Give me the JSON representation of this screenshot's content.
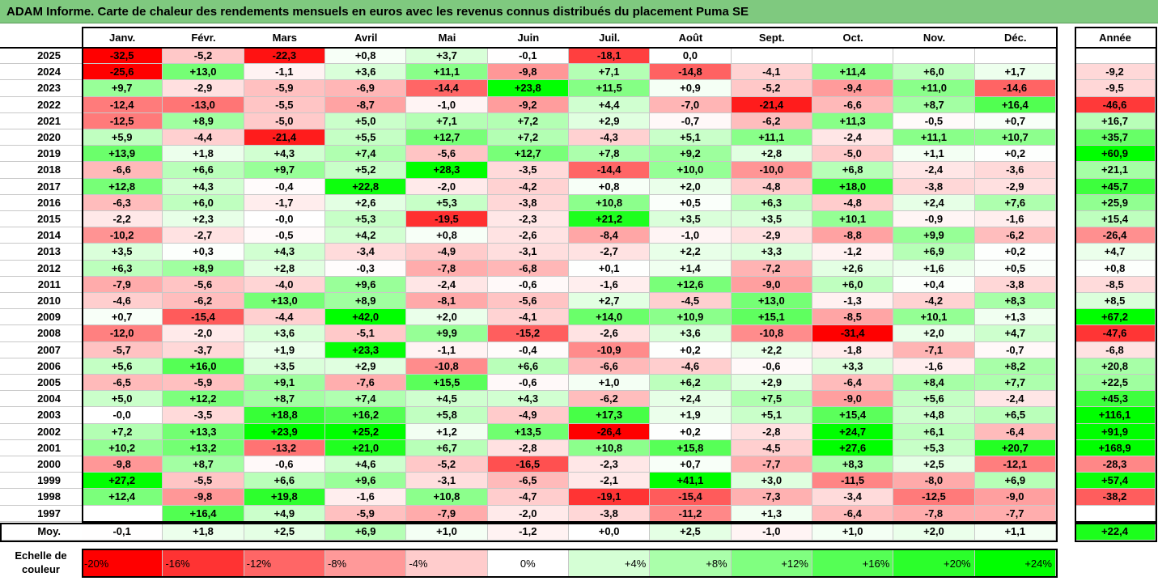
{
  "title": "ADAM Informe. Carte de chaleur des rendements mensuels en euros avec les revenus connus distribués du placement Puma SE",
  "chart_data": {
    "type": "heatmap",
    "columns": [
      "Janv.",
      "Févr.",
      "Mars",
      "Avril",
      "Mai",
      "Juin",
      "Juil.",
      "Août",
      "Sept.",
      "Oct.",
      "Nov.",
      "Déc."
    ],
    "year_column": "Année",
    "rows": [
      {
        "year": "2025",
        "values": [
          "-32,5",
          "-5,2",
          "-22,3",
          "+0,8",
          "+3,7",
          "-0,1",
          "-18,1",
          "0,0",
          "",
          "",
          "",
          ""
        ],
        "annual": ""
      },
      {
        "year": "2024",
        "values": [
          "-25,6",
          "+13,0",
          "-1,1",
          "+3,6",
          "+11,1",
          "-9,8",
          "+7,1",
          "-14,8",
          "-4,1",
          "+11,4",
          "+6,0",
          "+1,7"
        ],
        "annual": "-9,2"
      },
      {
        "year": "2023",
        "values": [
          "+9,7",
          "-2,9",
          "-5,9",
          "-6,9",
          "-14,4",
          "+23,8",
          "+11,5",
          "+0,9",
          "-5,2",
          "-9,4",
          "+11,0",
          "-14,6"
        ],
        "annual": "-9,5"
      },
      {
        "year": "2022",
        "values": [
          "-12,4",
          "-13,0",
          "-5,5",
          "-8,7",
          "-1,0",
          "-9,2",
          "+4,4",
          "-7,0",
          "-21,4",
          "-6,6",
          "+8,7",
          "+16,4"
        ],
        "annual": "-46,6"
      },
      {
        "year": "2021",
        "values": [
          "-12,5",
          "+8,9",
          "-5,0",
          "+5,0",
          "+7,1",
          "+7,2",
          "+2,9",
          "-0,7",
          "-6,2",
          "+11,3",
          "-0,5",
          "+0,7"
        ],
        "annual": "+16,7"
      },
      {
        "year": "2020",
        "values": [
          "+5,9",
          "-4,4",
          "-21,4",
          "+5,5",
          "+12,7",
          "+7,2",
          "-4,3",
          "+5,1",
          "+11,1",
          "-2,4",
          "+11,1",
          "+10,7"
        ],
        "annual": "+35,7"
      },
      {
        "year": "2019",
        "values": [
          "+13,9",
          "+1,8",
          "+4,3",
          "+7,4",
          "-5,6",
          "+12,7",
          "+7,8",
          "+9,2",
          "+2,8",
          "-5,0",
          "+1,1",
          "+0,2"
        ],
        "annual": "+60,9"
      },
      {
        "year": "2018",
        "values": [
          "-6,6",
          "+6,6",
          "+9,7",
          "+5,2",
          "+28,3",
          "-3,5",
          "-14,4",
          "+10,0",
          "-10,0",
          "+6,8",
          "-2,4",
          "-3,6"
        ],
        "annual": "+21,1"
      },
      {
        "year": "2017",
        "values": [
          "+12,8",
          "+4,3",
          "-0,4",
          "+22,8",
          "-2,0",
          "-4,2",
          "+0,8",
          "+2,0",
          "-4,8",
          "+18,0",
          "-3,8",
          "-2,9"
        ],
        "annual": "+45,7"
      },
      {
        "year": "2016",
        "values": [
          "-6,3",
          "+6,0",
          "-1,7",
          "+2,6",
          "+5,3",
          "-3,8",
          "+10,8",
          "+0,5",
          "+6,3",
          "-4,8",
          "+2,4",
          "+7,6"
        ],
        "annual": "+25,9"
      },
      {
        "year": "2015",
        "values": [
          "-2,2",
          "+2,3",
          "-0,0",
          "+5,3",
          "-19,5",
          "-2,3",
          "+21,2",
          "+3,5",
          "+3,5",
          "+10,1",
          "-0,9",
          "-1,6"
        ],
        "annual": "+15,4"
      },
      {
        "year": "2014",
        "values": [
          "-10,2",
          "-2,7",
          "-0,5",
          "+4,2",
          "+0,8",
          "-2,6",
          "-8,4",
          "-1,0",
          "-2,9",
          "-8,8",
          "+9,9",
          "-6,2"
        ],
        "annual": "-26,4"
      },
      {
        "year": "2013",
        "values": [
          "+3,5",
          "+0,3",
          "+4,3",
          "-3,4",
          "-4,9",
          "-3,1",
          "-2,7",
          "+2,2",
          "+3,3",
          "-1,2",
          "+6,9",
          "+0,2"
        ],
        "annual": "+4,7"
      },
      {
        "year": "2012",
        "values": [
          "+6,3",
          "+8,9",
          "+2,8",
          "-0,3",
          "-7,8",
          "-6,8",
          "+0,1",
          "+1,4",
          "-7,2",
          "+2,6",
          "+1,6",
          "+0,5"
        ],
        "annual": "+0,8"
      },
      {
        "year": "2011",
        "values": [
          "-7,9",
          "-5,6",
          "-4,0",
          "+9,6",
          "-2,4",
          "-0,6",
          "-1,6",
          "+12,6",
          "-9,0",
          "+6,0",
          "+0,4",
          "-3,8"
        ],
        "annual": "-8,5"
      },
      {
        "year": "2010",
        "values": [
          "-4,6",
          "-6,2",
          "+13,0",
          "+8,9",
          "-8,1",
          "-5,6",
          "+2,7",
          "-4,5",
          "+13,0",
          "-1,3",
          "-4,2",
          "+8,3"
        ],
        "annual": "+8,5"
      },
      {
        "year": "2009",
        "values": [
          "+0,7",
          "-15,4",
          "-4,4",
          "+42,0",
          "+2,0",
          "-4,1",
          "+14,0",
          "+10,9",
          "+15,1",
          "-8,5",
          "+10,1",
          "+1,3"
        ],
        "annual": "+67,2"
      },
      {
        "year": "2008",
        "values": [
          "-12,0",
          "-2,0",
          "+3,6",
          "-5,1",
          "+9,9",
          "-15,2",
          "-2,6",
          "+3,6",
          "-10,8",
          "-31,4",
          "+2,0",
          "+4,7"
        ],
        "annual": "-47,6"
      },
      {
        "year": "2007",
        "values": [
          "-5,7",
          "-3,7",
          "+1,9",
          "+23,3",
          "-1,1",
          "-0,4",
          "-10,9",
          "+0,2",
          "+2,2",
          "-1,8",
          "-7,1",
          "-0,7"
        ],
        "annual": "-6,8"
      },
      {
        "year": "2006",
        "values": [
          "+5,6",
          "+16,0",
          "+3,5",
          "+2,9",
          "-10,8",
          "+6,6",
          "-6,6",
          "-4,6",
          "-0,6",
          "+3,3",
          "-1,6",
          "+8,2"
        ],
        "annual": "+20,8"
      },
      {
        "year": "2005",
        "values": [
          "-6,5",
          "-5,9",
          "+9,1",
          "-7,6",
          "+15,5",
          "-0,6",
          "+1,0",
          "+6,2",
          "+2,9",
          "-6,4",
          "+8,4",
          "+7,7"
        ],
        "annual": "+22,5"
      },
      {
        "year": "2004",
        "values": [
          "+5,0",
          "+12,2",
          "+8,7",
          "+7,4",
          "+4,5",
          "+4,3",
          "-6,2",
          "+2,4",
          "+7,5",
          "-9,0",
          "+5,6",
          "-2,4"
        ],
        "annual": "+45,3"
      },
      {
        "year": "2003",
        "values": [
          "-0,0",
          "-3,5",
          "+18,8",
          "+16,2",
          "+5,8",
          "-4,9",
          "+17,3",
          "+1,9",
          "+5,1",
          "+15,4",
          "+4,8",
          "+6,5"
        ],
        "annual": "+116,1"
      },
      {
        "year": "2002",
        "values": [
          "+7,2",
          "+13,3",
          "+23,9",
          "+25,2",
          "+1,2",
          "+13,5",
          "-26,4",
          "+0,2",
          "-2,8",
          "+24,7",
          "+6,1",
          "-6,4"
        ],
        "annual": "+91,9"
      },
      {
        "year": "2001",
        "values": [
          "+10,2",
          "+13,2",
          "-13,2",
          "+21,0",
          "+6,7",
          "-2,8",
          "+10,8",
          "+15,8",
          "-4,5",
          "+27,6",
          "+5,3",
          "+20,7"
        ],
        "annual": "+168,9"
      },
      {
        "year": "2000",
        "values": [
          "-9,8",
          "+8,7",
          "-0,6",
          "+4,6",
          "-5,2",
          "-16,5",
          "-2,3",
          "+0,7",
          "-7,7",
          "+8,3",
          "+2,5",
          "-12,1"
        ],
        "annual": "-28,3"
      },
      {
        "year": "1999",
        "values": [
          "+27,2",
          "-5,5",
          "+6,6",
          "+9,6",
          "-3,1",
          "-6,5",
          "-2,1",
          "+41,1",
          "+3,0",
          "-11,5",
          "-8,0",
          "+6,9"
        ],
        "annual": "+57,4"
      },
      {
        "year": "1998",
        "values": [
          "+12,4",
          "-9,8",
          "+19,8",
          "-1,6",
          "+10,8",
          "-4,7",
          "-19,1",
          "-15,4",
          "-7,3",
          "-3,4",
          "-12,5",
          "-9,0"
        ],
        "annual": "-38,2"
      },
      {
        "year": "1997",
        "values": [
          "",
          "+16,4",
          "+4,9",
          "-5,9",
          "-7,9",
          "-2,0",
          "-3,8",
          "-11,2",
          "+1,3",
          "-6,4",
          "-7,8",
          "-7,7"
        ],
        "annual": ""
      }
    ],
    "average": {
      "label": "Moy.",
      "values": [
        "-0,1",
        "+1,8",
        "+2,5",
        "+6,9",
        "+1,0",
        "-1,2",
        "+0,0",
        "+2,5",
        "-1,0",
        "+1,0",
        "+2,0",
        "+1,1"
      ],
      "annual": "+22,4"
    },
    "legend": {
      "label_line1": "Echelle de",
      "label_line2": "couleur",
      "steps": [
        "-20%",
        "-16%",
        "-12%",
        "-8%",
        "-4%",
        "0%",
        "+4%",
        "+8%",
        "+12%",
        "+16%",
        "+20%",
        "+24%"
      ]
    },
    "colors": {
      "negative_full": "#ff0000",
      "positive_full": "#00ff00",
      "neutral": "#ffffff"
    },
    "color_scale_range": [
      -24,
      24
    ]
  }
}
